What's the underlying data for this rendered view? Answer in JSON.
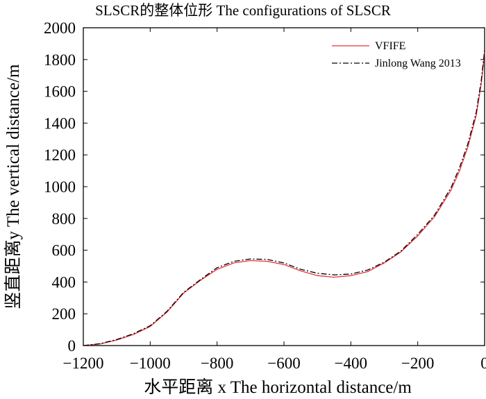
{
  "chart_data": {
    "type": "line",
    "title": "SLSCR的整体位形 The configurations of  SLSCR",
    "xlabel": "水平距离 x The horizontal distance/m",
    "ylabel": "竖直距离y The vertical distance/m",
    "xlim": [
      -1200,
      0
    ],
    "ylim": [
      0,
      2000
    ],
    "xticks": [
      -1200,
      -1000,
      -800,
      -600,
      -400,
      -200,
      0
    ],
    "yticks": [
      0,
      200,
      400,
      600,
      800,
      1000,
      1200,
      1400,
      1600,
      1800,
      2000
    ],
    "xtick_labels": [
      "−1200",
      "−1000",
      "−800",
      "−600",
      "−400",
      "−200",
      "0"
    ],
    "ytick_labels": [
      "0",
      "200",
      "400",
      "600",
      "800",
      "1000",
      "1200",
      "1400",
      "1600",
      "1800",
      "2000"
    ],
    "grid": false,
    "legend_position": "top-right",
    "series": [
      {
        "name": "VFIFE",
        "color": "#e8323c",
        "style": "solid",
        "x": [
          -1200,
          -1150,
          -1100,
          -1050,
          -1000,
          -950,
          -900,
          -850,
          -800,
          -750,
          -700,
          -650,
          -600,
          -550,
          -500,
          -450,
          -400,
          -350,
          -300,
          -250,
          -200,
          -150,
          -100,
          -75,
          -50,
          -25,
          -10,
          0
        ],
        "y": [
          0,
          10,
          35,
          70,
          120,
          210,
          330,
          410,
          480,
          520,
          535,
          530,
          510,
          470,
          440,
          430,
          440,
          465,
          520,
          590,
          690,
          810,
          980,
          1100,
          1250,
          1450,
          1650,
          1840
        ]
      },
      {
        "name": "Jinlong Wang 2013",
        "color": "#000000",
        "style": "dash-dot",
        "x": [
          -1200,
          -1150,
          -1100,
          -1050,
          -1000,
          -950,
          -900,
          -850,
          -800,
          -750,
          -700,
          -650,
          -600,
          -550,
          -500,
          -450,
          -400,
          -350,
          -300,
          -250,
          -200,
          -150,
          -100,
          -75,
          -50,
          -25,
          -10,
          0
        ],
        "y": [
          0,
          12,
          38,
          75,
          125,
          215,
          335,
          415,
          490,
          530,
          545,
          542,
          520,
          480,
          455,
          445,
          450,
          475,
          525,
          595,
          700,
          820,
          995,
          1120,
          1270,
          1470,
          1670,
          1860
        ]
      }
    ]
  }
}
